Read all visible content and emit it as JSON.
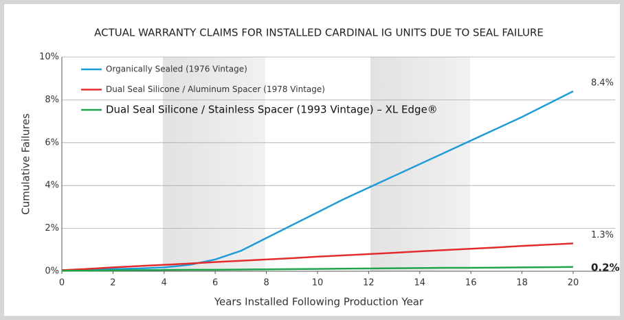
{
  "chart_data": {
    "type": "line",
    "title": "ACTUAL WARRANTY CLAIMS FOR INSTALLED CARDINAL IG UNITS DUE TO SEAL FAILURE",
    "xlabel": "Years Installed Following Production Year",
    "ylabel": "Cumulative Failures",
    "x": [
      0,
      1,
      2,
      3,
      4,
      5,
      6,
      7,
      8,
      9,
      10,
      11,
      12,
      13,
      14,
      15,
      16,
      17,
      18,
      19,
      20
    ],
    "series": [
      {
        "name": "Organically Sealed (1976 Vintage)",
        "color": "#1f9bd7",
        "end_label": "8.4%",
        "values": [
          0.05,
          0.07,
          0.1,
          0.13,
          0.18,
          0.3,
          0.55,
          0.95,
          1.55,
          2.15,
          2.75,
          3.35,
          3.9,
          4.45,
          5.0,
          5.55,
          6.1,
          6.65,
          7.2,
          7.8,
          8.4
        ]
      },
      {
        "name": "Dual Seal Silicone / Aluminum Spacer (1978 Vintage)",
        "color": "#e32b2b",
        "end_label": "1.3%",
        "values": [
          0.05,
          0.11,
          0.18,
          0.24,
          0.3,
          0.36,
          0.43,
          0.49,
          0.55,
          0.61,
          0.68,
          0.74,
          0.8,
          0.86,
          0.93,
          0.99,
          1.05,
          1.11,
          1.18,
          1.24,
          1.3
        ]
      },
      {
        "name": "Dual Seal Silicone / Stainless Spacer (1993 Vintage) – XL Edge®",
        "color": "#1fa44a",
        "end_label": "0.2%",
        "values": [
          0.02,
          0.03,
          0.04,
          0.05,
          0.06,
          0.07,
          0.07,
          0.08,
          0.09,
          0.1,
          0.11,
          0.12,
          0.13,
          0.14,
          0.15,
          0.16,
          0.16,
          0.17,
          0.18,
          0.19,
          0.2
        ]
      }
    ],
    "xlim": [
      0,
      20
    ],
    "xticks": [
      0,
      2,
      4,
      6,
      8,
      10,
      12,
      14,
      16,
      18,
      20
    ],
    "ylim": [
      0,
      10
    ],
    "yticks": [
      {
        "value": 0,
        "label": "0%"
      },
      {
        "value": 2,
        "label": "2%"
      },
      {
        "value": 4,
        "label": "4%"
      },
      {
        "value": 6,
        "label": "6%"
      },
      {
        "value": 8,
        "label": "8%"
      },
      {
        "value": 10,
        "label": "10%"
      }
    ],
    "grid": true
  }
}
